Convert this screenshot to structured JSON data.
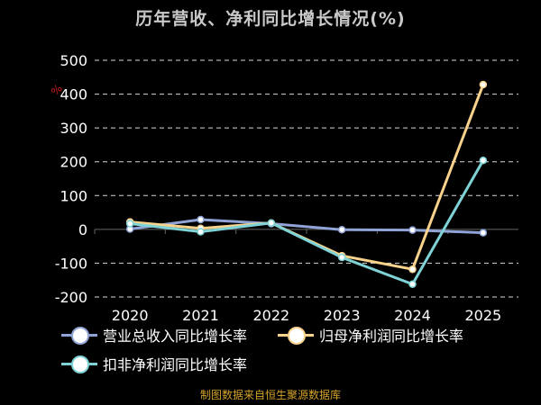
{
  "chart_data": {
    "type": "line",
    "title": "历年营收、净利同比增长情况(%)",
    "ylabel": "%",
    "categories": [
      "2020",
      "2021",
      "2022",
      "2023",
      "2024",
      "2025"
    ],
    "ylim": [
      -200,
      500
    ],
    "yticks": [
      500,
      400,
      300,
      200,
      100,
      0,
      -100,
      -200
    ],
    "grid": true,
    "legend_position": "bottom-left",
    "series": [
      {
        "name": "营业总收入同比增长率",
        "color": "#8fa3d6",
        "values": [
          1,
          29,
          17,
          -1,
          -2,
          -10
        ]
      },
      {
        "name": "归母净利润同比增长率",
        "color": "#f9d38c",
        "values": [
          22,
          3,
          19,
          -78,
          -118,
          428
        ]
      },
      {
        "name": "扣非净利润同比增长率",
        "color": "#7fd3d6",
        "values": [
          17,
          -7,
          19,
          -83,
          -162,
          204
        ]
      }
    ]
  },
  "source_note": "制图数据来自恒生聚源数据库"
}
